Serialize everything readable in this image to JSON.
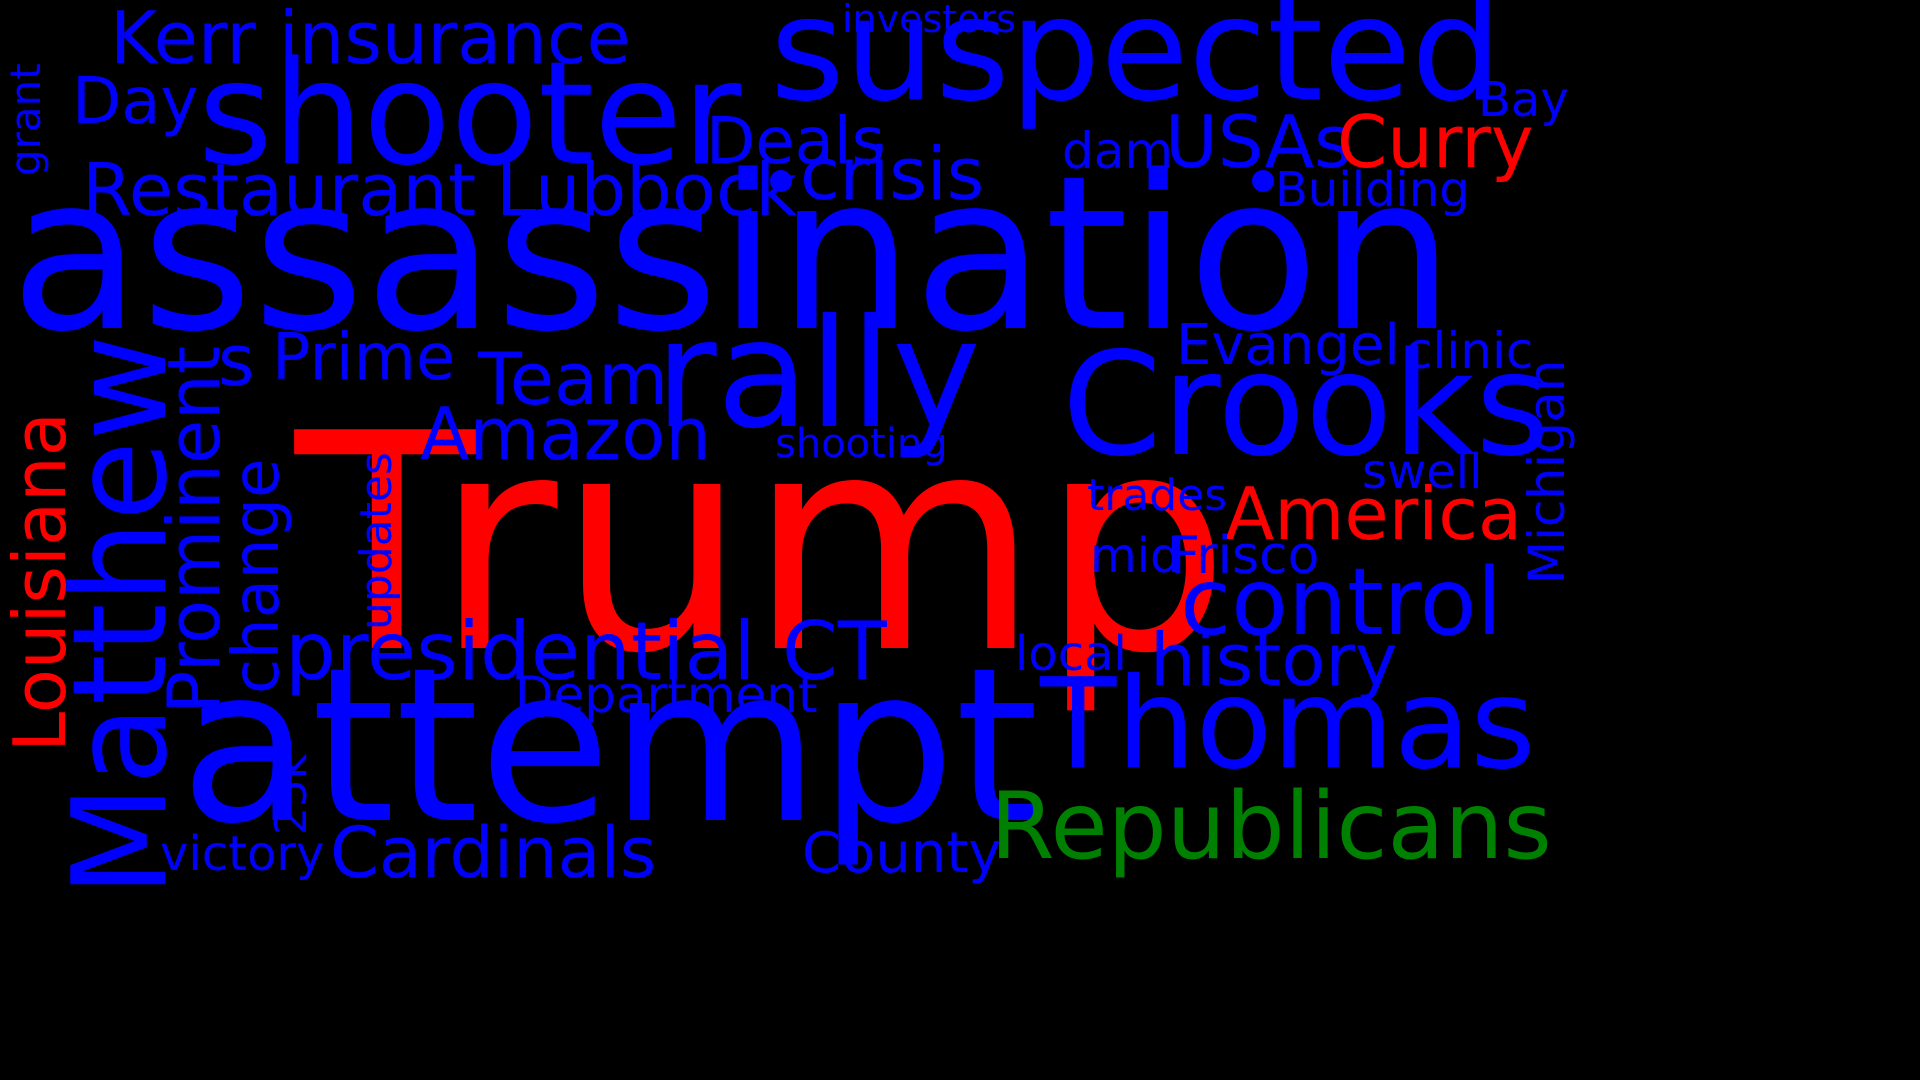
{
  "background": "#000000",
  "palette": {
    "blue": "#0000ff",
    "red": "#ff0000",
    "green": "#008000"
  },
  "words": {
    "trump": "Trump",
    "assassination": "assassination",
    "attempt": "attempt",
    "shooter": "shooter",
    "suspected": "suspected",
    "rally": "rally",
    "crooks": "Crooks",
    "thomas": "Thomas",
    "matthew": "Matthew",
    "republicans": "Republicans",
    "control": "control",
    "history": "history",
    "america": "America",
    "curry": "Curry",
    "usas": "USAs",
    "kerr_insurance": "Kerr insurance",
    "restaurant": "Restaurant",
    "lubbock": "Lubbock",
    "crisis": "crisis",
    "deals": "Deals",
    "day": "Day",
    "building": "Building",
    "bay": "Bay",
    "dam": "dam",
    "investors": "investors",
    "grant": "grant",
    "louisiana": "Louisiana",
    "prominent": "Prominent",
    "change": "change",
    "s": "s",
    "prime": "Prime",
    "team": "Team",
    "amazon": "Amazon",
    "shooting": "shooting",
    "updates": "updates",
    "presidential": "presidential",
    "ct": "CT",
    "department": "Department",
    "cardinals": "Cardinals",
    "victory": "victory",
    "k25": "25k",
    "county": "County",
    "local": "local",
    "evangel": "Evangel",
    "clinic": "clinic",
    "michigan": "Michigan",
    "swell": "swell",
    "trades": "trades",
    "mid": "mid",
    "frisco": "Frisco"
  }
}
